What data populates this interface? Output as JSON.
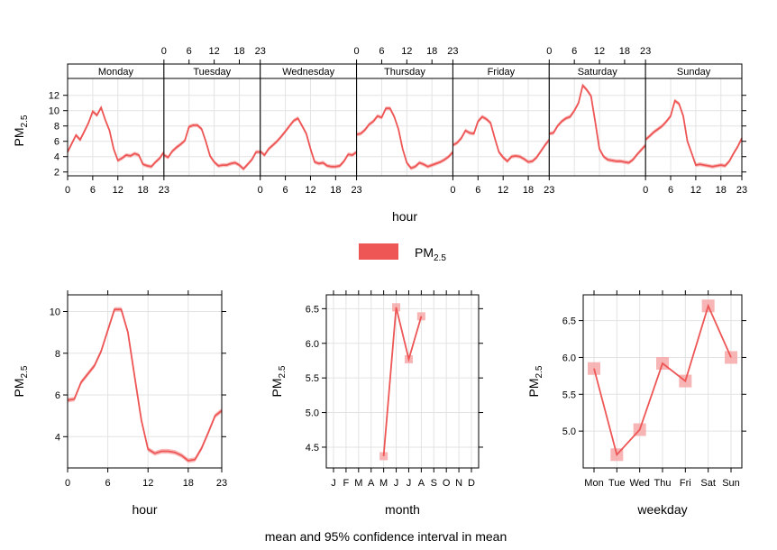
{
  "chart_data": {
    "type": "line",
    "footer": "mean and 95% confidence interval in mean",
    "legend": {
      "label": "PM",
      "subscript": "2.5",
      "color": "#EE5555",
      "ci_color": "#F6A8A8"
    },
    "ylabel": {
      "text": "PM",
      "subscript": "2.5"
    },
    "panels": [
      {
        "id": "hour-by-weekday",
        "type": "line",
        "xlabel": "hour",
        "ylim": [
          1.5,
          14.2
        ],
        "yticks": [
          2,
          4,
          6,
          8,
          10,
          12
        ],
        "xticks": [
          0,
          6,
          12,
          18,
          23
        ],
        "strips": [
          "Monday",
          "Tuesday",
          "Wednesday",
          "Thursday",
          "Friday",
          "Saturday",
          "Sunday"
        ],
        "series": [
          {
            "name": "Monday",
            "values": [
              4.6,
              5.7,
              6.8,
              6.2,
              7.3,
              8.4,
              9.9,
              9.4,
              10.4,
              8.8,
              7.4,
              5.0,
              3.5,
              3.8,
              4.2,
              4.1,
              4.4,
              4.2,
              3.0,
              2.8,
              2.7,
              3.3,
              3.8,
              4.6
            ]
          },
          {
            "name": "Tuesday",
            "values": [
              4.2,
              3.9,
              4.7,
              5.2,
              5.6,
              6.1,
              7.9,
              8.1,
              8.1,
              7.6,
              6.0,
              4.1,
              3.3,
              2.8,
              2.9,
              2.9,
              3.1,
              3.2,
              2.9,
              2.4,
              3.0,
              3.6,
              4.6,
              4.6
            ]
          },
          {
            "name": "Wednesday",
            "values": [
              4.7,
              4.2,
              5.0,
              5.5,
              6.0,
              6.6,
              7.3,
              8.0,
              8.7,
              9.0,
              8.0,
              7.0,
              5.0,
              3.3,
              3.1,
              3.2,
              2.8,
              2.7,
              2.7,
              2.8,
              3.4,
              4.3,
              4.2,
              4.6
            ]
          },
          {
            "name": "Thursday",
            "values": [
              6.9,
              7.0,
              7.5,
              8.2,
              8.6,
              9.3,
              9.1,
              10.3,
              10.3,
              9.2,
              7.6,
              5.0,
              3.2,
              2.5,
              2.7,
              3.2,
              3.0,
              2.7,
              2.9,
              3.1,
              3.3,
              3.6,
              4.0,
              4.6
            ]
          },
          {
            "name": "Friday",
            "values": [
              5.5,
              5.8,
              6.4,
              7.4,
              7.1,
              7.0,
              8.6,
              9.2,
              8.9,
              8.4,
              6.4,
              4.6,
              3.9,
              3.4,
              4.0,
              4.1,
              4.0,
              3.7,
              3.3,
              3.4,
              3.9,
              4.7,
              5.5,
              6.2
            ]
          },
          {
            "name": "Saturday",
            "values": [
              7.0,
              7.1,
              8.0,
              8.6,
              9.0,
              9.2,
              10.0,
              11.0,
              13.3,
              12.7,
              11.9,
              8.5,
              5.0,
              4.0,
              3.6,
              3.5,
              3.4,
              3.4,
              3.3,
              3.2,
              3.6,
              4.3,
              4.9,
              5.5
            ]
          },
          {
            "name": "Sunday",
            "values": [
              6.2,
              6.7,
              7.2,
              7.6,
              8.0,
              8.6,
              9.3,
              11.3,
              10.9,
              9.3,
              6.0,
              4.5,
              2.9,
              3.0,
              2.9,
              2.8,
              2.7,
              2.8,
              2.9,
              2.8,
              3.4,
              4.4,
              5.3,
              6.4
            ]
          }
        ]
      },
      {
        "id": "hour",
        "type": "line",
        "xlabel": "hour",
        "xlim": [
          0,
          23
        ],
        "ylim": [
          2.5,
          10.8
        ],
        "xticks": [
          0,
          6,
          12,
          18,
          23
        ],
        "yticks": [
          4,
          6,
          8,
          10
        ],
        "x": [
          0,
          1,
          2,
          3,
          4,
          5,
          6,
          7,
          8,
          9,
          10,
          11,
          12,
          13,
          14,
          15,
          16,
          17,
          18,
          19,
          20,
          21,
          22,
          23
        ],
        "values": [
          5.75,
          5.8,
          6.6,
          7.0,
          7.4,
          8.1,
          9.1,
          10.1,
          10.1,
          9.0,
          6.9,
          4.8,
          3.4,
          3.2,
          3.3,
          3.3,
          3.25,
          3.1,
          2.85,
          2.9,
          3.45,
          4.2,
          5.0,
          5.25
        ]
      },
      {
        "id": "month",
        "type": "line",
        "xlabel": "month",
        "ylim": [
          4.2,
          6.7
        ],
        "yticks": [
          4.5,
          5.0,
          5.5,
          6.0,
          6.5
        ],
        "ytick_labels": [
          "4.5",
          "5.0",
          "5.5",
          "6.0",
          "6.5"
        ],
        "categories": [
          "J",
          "F",
          "M",
          "A",
          "M",
          "J",
          "J",
          "A",
          "S",
          "O",
          "N",
          "D"
        ],
        "values": [
          null,
          null,
          null,
          null,
          4.37,
          6.52,
          5.77,
          6.39,
          null,
          null,
          null,
          null
        ]
      },
      {
        "id": "weekday",
        "type": "line",
        "xlabel": "weekday",
        "ylim": [
          4.5,
          6.85
        ],
        "yticks": [
          5.0,
          5.5,
          6.0,
          6.5
        ],
        "ytick_labels": [
          "5.0",
          "5.5",
          "6.0",
          "6.5"
        ],
        "categories": [
          "Mon",
          "Tue",
          "Wed",
          "Thu",
          "Fri",
          "Sat",
          "Sun"
        ],
        "values": [
          5.85,
          4.68,
          5.02,
          5.92,
          5.68,
          6.7,
          6.0
        ]
      }
    ]
  }
}
